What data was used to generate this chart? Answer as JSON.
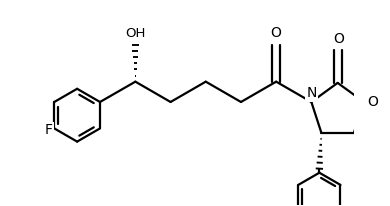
{
  "bg_color": "#ffffff",
  "line_color": "#000000",
  "line_width": 1.6,
  "font_size": 9.5,
  "figsize": [
    3.9,
    2.06
  ],
  "dpi": 100,
  "xlim": [
    0,
    7.8
  ],
  "ylim": [
    -2.5,
    2.5
  ]
}
